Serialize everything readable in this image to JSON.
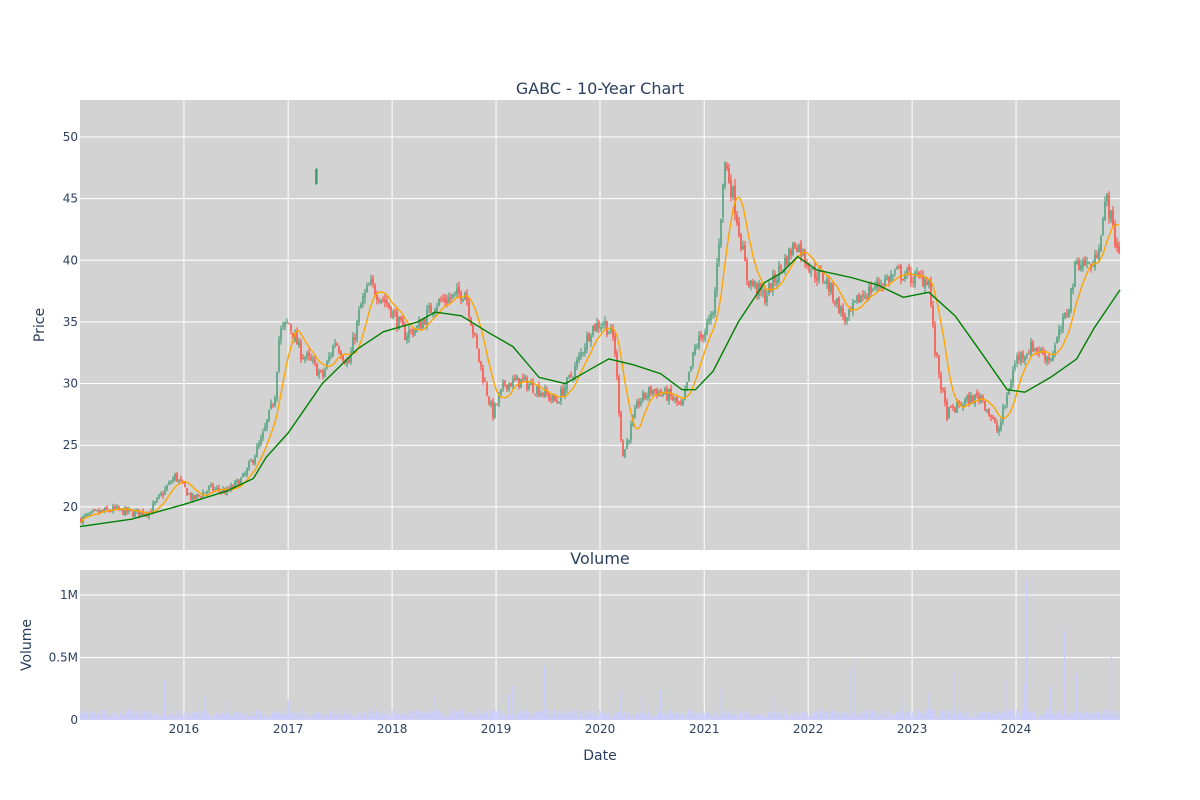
{
  "chart_data": [
    {
      "type": "candlestick",
      "title": "GABC - 10-Year Chart",
      "ylabel": "Price",
      "xlim": [
        "2015-01-01",
        "2024-12-31"
      ],
      "ylim": [
        16.5,
        53
      ],
      "yticks": [
        20,
        25,
        30,
        35,
        40,
        45,
        50
      ],
      "xticks": [
        "2016-01-01",
        "2017-01-01",
        "2018-01-01",
        "2019-01-01",
        "2020-01-01",
        "2021-01-01",
        "2022-01-01",
        "2023-01-01",
        "2024-01-01"
      ],
      "xtick_labels": [
        "2016",
        "2017",
        "2018",
        "2019",
        "2020",
        "2021",
        "2022",
        "2023",
        "2024"
      ],
      "grid": true,
      "colors": {
        "increasing": "#3d9970",
        "decreasing": "#ff4136",
        "ma_short": "#ffa500",
        "ma_long": "#008000",
        "plot_bg": "#d3d3d3"
      },
      "price_path": [
        [
          "2015-01-01",
          19.0
        ],
        [
          "2015-03-01",
          19.5
        ],
        [
          "2015-05-01",
          19.8
        ],
        [
          "2015-07-01",
          19.5
        ],
        [
          "2015-09-01",
          19.6
        ],
        [
          "2015-10-15",
          21.0
        ],
        [
          "2015-12-01",
          22.5
        ],
        [
          "2016-02-01",
          20.6
        ],
        [
          "2016-04-01",
          21.5
        ],
        [
          "2016-06-01",
          21.2
        ],
        [
          "2016-08-01",
          22.5
        ],
        [
          "2016-10-01",
          25.5
        ],
        [
          "2016-11-15",
          29.0
        ],
        [
          "2016-12-01",
          34.0
        ],
        [
          "2017-01-01",
          35.0
        ],
        [
          "2017-02-15",
          32.5
        ],
        [
          "2017-04-01",
          31.5
        ],
        [
          "2017-05-01",
          30.5
        ],
        [
          "2017-06-15",
          33.5
        ],
        [
          "2017-08-01",
          31.5
        ],
        [
          "2017-09-15",
          36.5
        ],
        [
          "2017-10-15",
          38.0
        ],
        [
          "2017-12-15",
          36.5
        ],
        [
          "2018-02-15",
          34.0
        ],
        [
          "2018-04-01",
          34.5
        ],
        [
          "2018-06-01",
          36.5
        ],
        [
          "2018-08-01",
          37.0
        ],
        [
          "2018-09-15",
          37.5
        ],
        [
          "2018-11-01",
          32.0
        ],
        [
          "2018-12-20",
          27.5
        ],
        [
          "2019-02-01",
          30.0
        ],
        [
          "2019-04-01",
          30.2
        ],
        [
          "2019-06-01",
          29.5
        ],
        [
          "2019-08-01",
          28.5
        ],
        [
          "2019-10-01",
          31.0
        ],
        [
          "2019-12-01",
          34.5
        ],
        [
          "2020-01-15",
          35.0
        ],
        [
          "2020-02-20",
          33.5
        ],
        [
          "2020-03-20",
          24.0
        ],
        [
          "2020-05-15",
          28.5
        ],
        [
          "2020-07-01",
          29.5
        ],
        [
          "2020-09-01",
          29.0
        ],
        [
          "2020-10-15",
          28.0
        ],
        [
          "2020-12-01",
          33.0
        ],
        [
          "2021-02-01",
          35.5
        ],
        [
          "2021-03-15",
          48.0
        ],
        [
          "2021-04-15",
          45.0
        ],
        [
          "2021-06-01",
          38.5
        ],
        [
          "2021-08-01",
          37.0
        ],
        [
          "2021-10-01",
          39.5
        ],
        [
          "2021-11-20",
          41.5
        ],
        [
          "2022-01-20",
          39.0
        ],
        [
          "2022-03-01",
          38.5
        ],
        [
          "2022-05-15",
          35.0
        ],
        [
          "2022-07-01",
          37.0
        ],
        [
          "2022-09-01",
          38.0
        ],
        [
          "2022-11-15",
          39.0
        ],
        [
          "2023-01-15",
          38.5
        ],
        [
          "2023-03-01",
          38.5
        ],
        [
          "2023-03-20",
          33.0
        ],
        [
          "2023-05-01",
          27.5
        ],
        [
          "2023-07-01",
          28.5
        ],
        [
          "2023-09-01",
          29.0
        ],
        [
          "2023-10-30",
          26.0
        ],
        [
          "2024-01-01",
          32.0
        ],
        [
          "2024-03-01",
          33.0
        ],
        [
          "2024-05-01",
          32.0
        ],
        [
          "2024-07-01",
          36.0
        ],
        [
          "2024-08-01",
          40.0
        ],
        [
          "2024-10-01",
          39.5
        ],
        [
          "2024-11-15",
          45.0
        ],
        [
          "2024-12-20",
          41.0
        ]
      ],
      "outlier_candles": [
        {
          "date": "2017-04-10",
          "open": 46.2,
          "close": 47.4,
          "high": 47.5,
          "low": 46.1
        }
      ],
      "ma_long_path": [
        [
          "2015-01-01",
          18.4
        ],
        [
          "2015-07-01",
          19.0
        ],
        [
          "2016-01-01",
          20.2
        ],
        [
          "2016-06-01",
          21.3
        ],
        [
          "2016-09-01",
          22.3
        ],
        [
          "2016-10-15",
          24.0
        ],
        [
          "2017-01-01",
          26.0
        ],
        [
          "2017-05-01",
          30.0
        ],
        [
          "2017-09-01",
          32.8
        ],
        [
          "2017-12-01",
          34.2
        ],
        [
          "2018-04-01",
          35.0
        ],
        [
          "2018-06-01",
          35.8
        ],
        [
          "2018-09-01",
          35.5
        ],
        [
          "2018-12-01",
          34.2
        ],
        [
          "2019-03-01",
          33.0
        ],
        [
          "2019-06-01",
          30.5
        ],
        [
          "2019-09-01",
          30.0
        ],
        [
          "2019-12-01",
          31.2
        ],
        [
          "2020-02-01",
          32.0
        ],
        [
          "2020-05-01",
          31.5
        ],
        [
          "2020-08-01",
          30.8
        ],
        [
          "2020-10-15",
          29.5
        ],
        [
          "2020-12-01",
          29.5
        ],
        [
          "2021-02-01",
          31.0
        ],
        [
          "2021-05-01",
          35.0
        ],
        [
          "2021-08-01",
          38.2
        ],
        [
          "2021-10-01",
          39.0
        ],
        [
          "2021-11-25",
          40.3
        ],
        [
          "2022-02-01",
          39.2
        ],
        [
          "2022-06-01",
          38.6
        ],
        [
          "2022-09-01",
          38.0
        ],
        [
          "2022-12-01",
          37.0
        ],
        [
          "2023-03-01",
          37.4
        ],
        [
          "2023-06-01",
          35.5
        ],
        [
          "2023-09-01",
          32.5
        ],
        [
          "2023-12-01",
          29.5
        ],
        [
          "2024-02-01",
          29.3
        ],
        [
          "2024-05-01",
          30.5
        ],
        [
          "2024-08-01",
          32.0
        ],
        [
          "2024-10-01",
          34.5
        ],
        [
          "2024-12-31",
          37.6
        ]
      ]
    },
    {
      "type": "bar",
      "title": "Volume",
      "xlabel": "Date",
      "ylabel": "Volume",
      "ylim": [
        0,
        1200000
      ],
      "yticks": [
        0,
        500000,
        1000000
      ],
      "ytick_labels": [
        "0",
        "0.5M",
        "1M"
      ],
      "xticks": [
        "2016-01-01",
        "2017-01-01",
        "2018-01-01",
        "2019-01-01",
        "2020-01-01",
        "2021-01-01",
        "2022-01-01",
        "2023-01-01",
        "2024-01-01"
      ],
      "xtick_labels": [
        "2016",
        "2017",
        "2018",
        "2019",
        "2020",
        "2021",
        "2022",
        "2023",
        "2024"
      ],
      "color": "#ccccff",
      "baseline_volume": 55000,
      "spikes": [
        [
          "2015-10-25",
          320000
        ],
        [
          "2016-03-15",
          200000
        ],
        [
          "2016-06-01",
          170000
        ],
        [
          "2017-01-01",
          160000
        ],
        [
          "2018-06-01",
          200000
        ],
        [
          "2019-02-15",
          210000
        ],
        [
          "2019-03-01",
          270000
        ],
        [
          "2019-06-20",
          440000
        ],
        [
          "2020-03-15",
          230000
        ],
        [
          "2020-06-01",
          190000
        ],
        [
          "2020-08-01",
          240000
        ],
        [
          "2021-03-01",
          250000
        ],
        [
          "2021-09-01",
          200000
        ],
        [
          "2022-06-01",
          400000
        ],
        [
          "2022-06-10",
          470000
        ],
        [
          "2022-12-01",
          200000
        ],
        [
          "2023-03-01",
          220000
        ],
        [
          "2023-06-01",
          400000
        ],
        [
          "2023-12-01",
          320000
        ],
        [
          "2024-02-01",
          300000
        ],
        [
          "2024-02-08",
          1140000
        ],
        [
          "2024-05-01",
          270000
        ],
        [
          "2024-06-20",
          720000
        ],
        [
          "2024-08-01",
          370000
        ],
        [
          "2024-12-01",
          520000
        ]
      ]
    }
  ]
}
